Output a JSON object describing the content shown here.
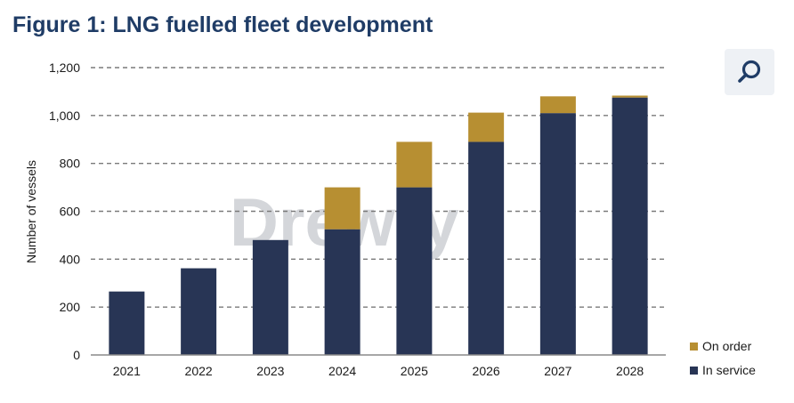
{
  "title": "Figure 1: LNG fuelled fleet development",
  "zoom": {
    "icon": "magnifier-icon"
  },
  "watermark": "Drewry",
  "colors": {
    "in_service": "#283555",
    "on_order": "#b78f32",
    "title": "#1f3c66",
    "grid": "#7a7a7a"
  },
  "chart_data": {
    "type": "bar",
    "stacked": true,
    "categories": [
      "2021",
      "2022",
      "2023",
      "2024",
      "2025",
      "2026",
      "2027",
      "2028"
    ],
    "series": [
      {
        "name": "In service",
        "values": [
          265,
          362,
          480,
          525,
          700,
          890,
          1010,
          1075
        ]
      },
      {
        "name": "On order",
        "values": [
          0,
          0,
          0,
          175,
          190,
          122,
          70,
          8
        ]
      }
    ],
    "ylabel": "Number of vessels",
    "ylim": [
      0,
      1200
    ],
    "yticks": [
      "0",
      "200",
      "400",
      "600",
      "800",
      "1,000",
      "1,200"
    ],
    "grid": "dashed horizontal",
    "legend": [
      "On order",
      "In service"
    ],
    "legend_position": "bottom-right"
  }
}
